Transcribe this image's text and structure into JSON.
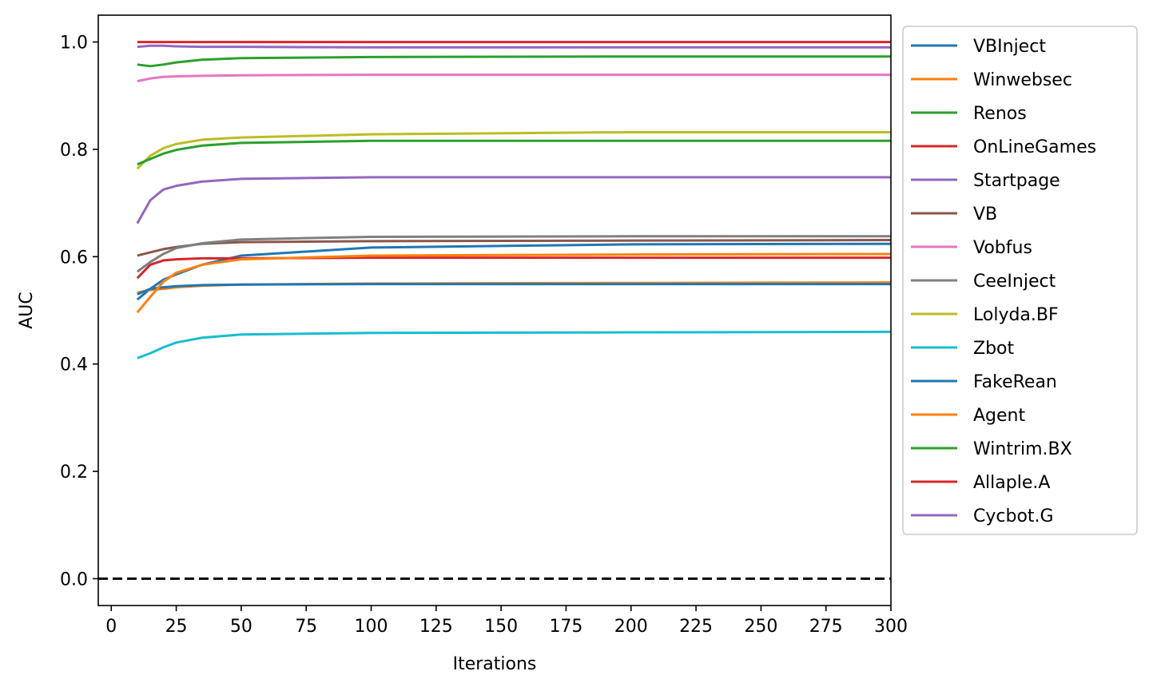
{
  "chart_data": {
    "type": "line",
    "title": "",
    "xlabel": "Iterations",
    "ylabel": "AUC",
    "xlim": [
      -5,
      300
    ],
    "ylim": [
      -0.05,
      1.05
    ],
    "xticks": [
      0,
      25,
      50,
      75,
      100,
      125,
      150,
      175,
      200,
      225,
      250,
      275,
      300
    ],
    "xtick_labels": [
      "0",
      "25",
      "50",
      "75",
      "100",
      "125",
      "150",
      "175",
      "200",
      "225",
      "250",
      "275",
      "300"
    ],
    "yticks": [
      0.0,
      0.2,
      0.4,
      0.6,
      0.8,
      1.0
    ],
    "ytick_labels": [
      "0.0",
      "0.2",
      "0.4",
      "0.6",
      "0.8",
      "1.0"
    ],
    "grid": false,
    "legend_position": "outside-right",
    "x": [
      10,
      15,
      20,
      25,
      35,
      50,
      100,
      200,
      300
    ],
    "series": [
      {
        "name": "VBInject",
        "color": "#1f77b4",
        "values": [
          0.52,
          0.54,
          0.557,
          0.567,
          0.585,
          0.602,
          0.617,
          0.623,
          0.624
        ]
      },
      {
        "name": "Winwebsec",
        "color": "#ff7f0e",
        "values": [
          0.533,
          0.538,
          0.54,
          0.543,
          0.546,
          0.548,
          0.55,
          0.551,
          0.552
        ]
      },
      {
        "name": "Renos",
        "color": "#2ca02c",
        "values": [
          0.958,
          0.955,
          0.958,
          0.962,
          0.967,
          0.97,
          0.972,
          0.973,
          0.973
        ]
      },
      {
        "name": "OnLineGames",
        "color": "#d62728",
        "values": [
          0.56,
          0.585,
          0.593,
          0.595,
          0.597,
          0.597,
          0.598,
          0.598,
          0.598
        ]
      },
      {
        "name": "Startpage",
        "color": "#9467bd",
        "values": [
          0.662,
          0.705,
          0.725,
          0.732,
          0.74,
          0.745,
          0.748,
          0.748,
          0.748
        ]
      },
      {
        "name": "VB",
        "color": "#8c564b",
        "values": [
          0.602,
          0.608,
          0.614,
          0.618,
          0.624,
          0.627,
          0.629,
          0.63,
          0.631
        ]
      },
      {
        "name": "Vobfus",
        "color": "#e377c2",
        "values": [
          0.927,
          0.932,
          0.935,
          0.936,
          0.937,
          0.938,
          0.939,
          0.939,
          0.939
        ]
      },
      {
        "name": "CeeInject",
        "color": "#7f7f7f",
        "values": [
          0.572,
          0.59,
          0.605,
          0.616,
          0.625,
          0.632,
          0.637,
          0.638,
          0.638
        ]
      },
      {
        "name": "Lolyda.BF",
        "color": "#bcbd22",
        "values": [
          0.764,
          0.788,
          0.802,
          0.81,
          0.818,
          0.822,
          0.828,
          0.832,
          0.832
        ]
      },
      {
        "name": "Zbot",
        "color": "#17becf",
        "values": [
          0.411,
          0.42,
          0.431,
          0.44,
          0.449,
          0.455,
          0.458,
          0.459,
          0.46
        ]
      },
      {
        "name": "FakeRean",
        "color": "#1f77b4",
        "values": [
          0.53,
          0.54,
          0.543,
          0.545,
          0.547,
          0.548,
          0.549,
          0.549,
          0.549
        ]
      },
      {
        "name": "Agent",
        "color": "#ff7f0e",
        "values": [
          0.496,
          0.525,
          0.553,
          0.57,
          0.585,
          0.595,
          0.602,
          0.604,
          0.605
        ]
      },
      {
        "name": "Wintrim.BX",
        "color": "#2ca02c",
        "values": [
          0.772,
          0.782,
          0.792,
          0.799,
          0.807,
          0.812,
          0.816,
          0.816,
          0.816
        ]
      },
      {
        "name": "Allaple.A",
        "color": "#d62728",
        "values": [
          1.0,
          1.0,
          1.0,
          1.0,
          1.0,
          1.0,
          1.0,
          1.0,
          1.0
        ]
      },
      {
        "name": "Cycbot.G",
        "color": "#9467bd",
        "values": [
          0.991,
          0.993,
          0.993,
          0.992,
          0.991,
          0.991,
          0.99,
          0.99,
          0.99
        ]
      }
    ],
    "reference_line": {
      "y": 0.0,
      "style": "dashed",
      "color": "#000000"
    }
  }
}
